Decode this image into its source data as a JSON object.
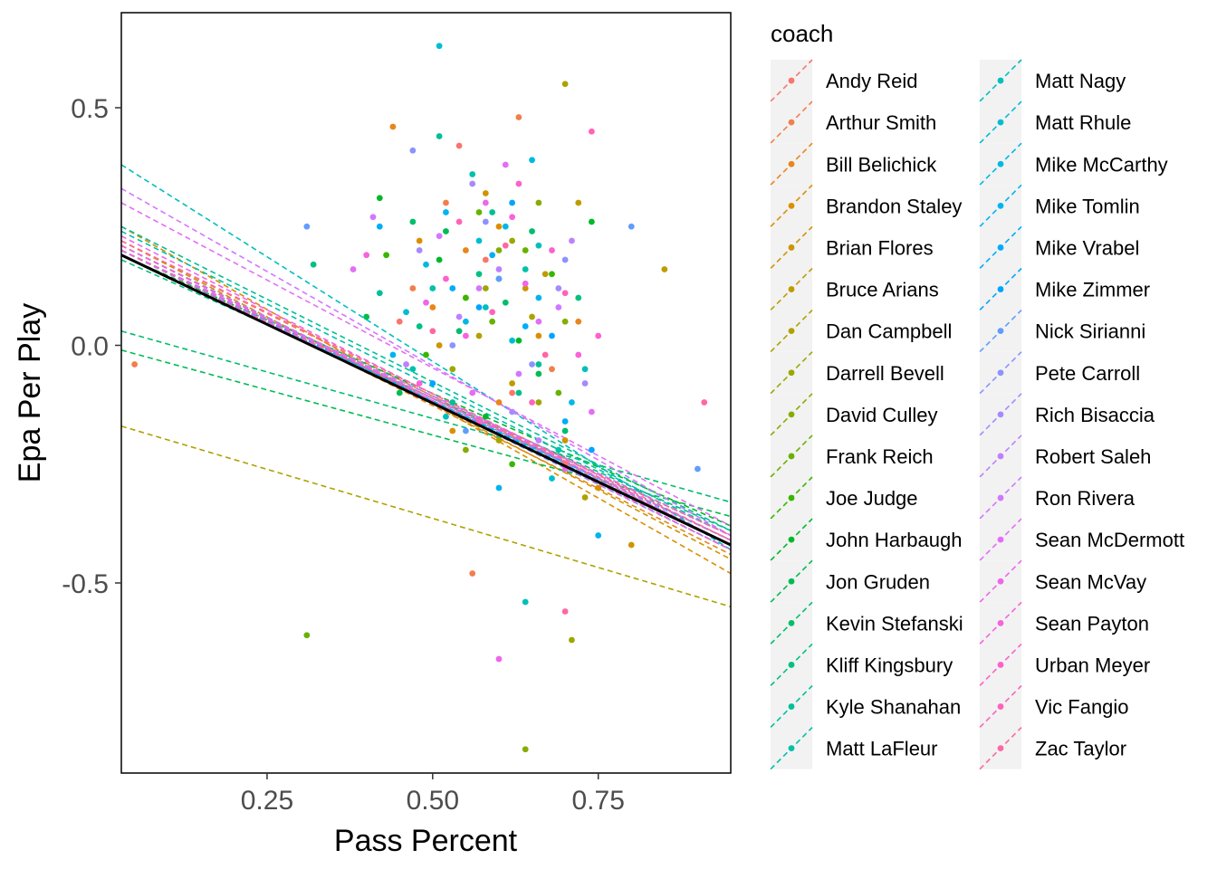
{
  "chart_data": {
    "type": "scatter",
    "xlabel": "Pass Percent",
    "ylabel": "Epa Per Play",
    "xlim": [
      0.03,
      0.95
    ],
    "ylim": [
      -0.9,
      0.7
    ],
    "x_ticks": [
      {
        "value": 0.25,
        "label": "0.25"
      },
      {
        "value": 0.5,
        "label": "0.50"
      },
      {
        "value": 0.75,
        "label": "0.75"
      }
    ],
    "y_ticks": [
      {
        "value": 0.5,
        "label": "0.5"
      },
      {
        "value": 0.0,
        "label": "0.0"
      },
      {
        "value": -0.5,
        "label": "-0.5"
      }
    ],
    "grid": false,
    "legend": {
      "title": "coach",
      "position": "right",
      "columns": 2
    },
    "overall_fit": {
      "x": [
        0.03,
        0.95
      ],
      "y": [
        0.19,
        -0.42
      ],
      "color": "#000000"
    },
    "series": [
      {
        "name": "Andy Reid",
        "color": "#F8766D",
        "fit": [
          0.2,
          -0.41
        ],
        "points": [
          [
            0.54,
            0.42
          ],
          [
            0.62,
            -0.1
          ],
          [
            0.45,
            0.05
          ],
          [
            0.7,
            -0.25
          ],
          [
            0.58,
            0.18
          ]
        ]
      },
      {
        "name": "Arthur Smith",
        "color": "#F17F4C",
        "fit": [
          0.22,
          -0.42
        ],
        "points": [
          [
            0.05,
            -0.04
          ],
          [
            0.63,
            0.48
          ],
          [
            0.52,
            0.3
          ],
          [
            0.68,
            -0.05
          ],
          [
            0.47,
            0.12
          ],
          [
            0.56,
            -0.48
          ]
        ]
      },
      {
        "name": "Bill Belichick",
        "color": "#E7861B",
        "fit": [
          0.2,
          -0.44
        ],
        "points": [
          [
            0.44,
            0.46
          ],
          [
            0.55,
            0.2
          ],
          [
            0.6,
            -0.12
          ],
          [
            0.72,
            0.05
          ],
          [
            0.5,
            0.08
          ]
        ]
      },
      {
        "name": "Brandon Staley",
        "color": "#DB8E00",
        "fit": [
          0.25,
          -0.48
        ],
        "points": [
          [
            0.6,
            0.25
          ],
          [
            0.66,
            0.02
          ],
          [
            0.53,
            -0.18
          ],
          [
            0.75,
            -0.3
          ],
          [
            0.48,
            0.22
          ]
        ]
      },
      {
        "name": "Brian Flores",
        "color": "#CE9500",
        "fit": [
          0.22,
          -0.45
        ],
        "points": [
          [
            0.58,
            0.32
          ],
          [
            0.64,
            0.12
          ],
          [
            0.7,
            -0.2
          ],
          [
            0.51,
            0.0
          ],
          [
            0.8,
            -0.42
          ]
        ]
      },
      {
        "name": "Bruce Arians",
        "color": "#BE9C00",
        "fit": [
          0.2,
          -0.41
        ],
        "points": [
          [
            0.72,
            0.3
          ],
          [
            0.67,
            0.15
          ],
          [
            0.62,
            -0.08
          ],
          [
            0.85,
            0.16
          ],
          [
            0.55,
            0.1
          ]
        ]
      },
      {
        "name": "Dan Campbell",
        "color": "#AEA200",
        "fit": [
          -0.17,
          -0.55
        ],
        "points": [
          [
            0.7,
            0.55
          ],
          [
            0.65,
            0.06
          ],
          [
            0.6,
            -0.2
          ],
          [
            0.73,
            -0.32
          ],
          [
            0.57,
            0.02
          ]
        ]
      },
      {
        "name": "Darrell Bevell",
        "color": "#9AA800",
        "fit": [
          0.2,
          -0.4
        ],
        "points": [
          [
            0.58,
            0.12
          ],
          [
            0.66,
            -0.12
          ],
          [
            0.71,
            -0.62
          ],
          [
            0.62,
            0.22
          ],
          [
            0.53,
            -0.05
          ]
        ]
      },
      {
        "name": "David Culley",
        "color": "#84AD00",
        "fit": [
          0.21,
          -0.42
        ],
        "points": [
          [
            0.64,
            -0.85
          ],
          [
            0.6,
            0.2
          ],
          [
            0.7,
            0.05
          ],
          [
            0.55,
            -0.22
          ],
          [
            0.66,
            0.3
          ]
        ]
      },
      {
        "name": "Frank Reich",
        "color": "#66B200",
        "fit": [
          0.19,
          -0.4
        ],
        "points": [
          [
            0.31,
            -0.61
          ],
          [
            0.59,
            0.05
          ],
          [
            0.64,
            0.2
          ],
          [
            0.69,
            -0.1
          ],
          [
            0.57,
            0.28
          ]
        ]
      },
      {
        "name": "Joe Judge",
        "color": "#39B600",
        "fit": [
          0.2,
          -0.41
        ],
        "points": [
          [
            0.43,
            0.19
          ],
          [
            0.55,
            0.1
          ],
          [
            0.62,
            -0.25
          ],
          [
            0.68,
            0.15
          ],
          [
            0.49,
            -0.02
          ]
        ]
      },
      {
        "name": "John Harbaugh",
        "color": "#00B92A",
        "fit": [
          0.19,
          -0.38
        ],
        "points": [
          [
            0.42,
            0.31
          ],
          [
            0.63,
            0.01
          ],
          [
            0.58,
            -0.15
          ],
          [
            0.74,
            0.26
          ],
          [
            0.51,
            0.18
          ]
        ]
      },
      {
        "name": "Jon Gruden",
        "color": "#00BC51",
        "fit": [
          -0.01,
          -0.36
        ],
        "points": [
          [
            0.4,
            0.06
          ],
          [
            0.52,
            0.24
          ],
          [
            0.66,
            -0.06
          ],
          [
            0.6,
            0.14
          ],
          [
            0.45,
            -0.1
          ]
        ]
      },
      {
        "name": "Kevin Stefanski",
        "color": "#00BE6C",
        "fit": [
          0.03,
          -0.33
        ],
        "points": [
          [
            0.47,
            0.26
          ],
          [
            0.61,
            0.09
          ],
          [
            0.7,
            -0.18
          ],
          [
            0.54,
            0.03
          ],
          [
            0.65,
            0.24
          ]
        ]
      },
      {
        "name": "Kliff Kingsbury",
        "color": "#00C083",
        "fit": [
          0.18,
          -0.39
        ],
        "points": [
          [
            0.32,
            0.17
          ],
          [
            0.57,
            0.15
          ],
          [
            0.63,
            -0.1
          ],
          [
            0.48,
            0.04
          ],
          [
            0.72,
            0.1
          ]
        ]
      },
      {
        "name": "Kyle Shanahan",
        "color": "#00C097",
        "fit": [
          0.25,
          -0.39
        ],
        "points": [
          [
            0.51,
            0.44
          ],
          [
            0.59,
            0.28
          ],
          [
            0.66,
            -0.04
          ],
          [
            0.42,
            0.11
          ],
          [
            0.53,
            -0.12
          ]
        ]
      },
      {
        "name": "Matt LaFleur",
        "color": "#00C1AA",
        "fit": [
          0.24,
          -0.4
        ],
        "points": [
          [
            0.5,
            0.12
          ],
          [
            0.56,
            0.36
          ],
          [
            0.64,
            0.16
          ],
          [
            0.69,
            -0.22
          ],
          [
            0.47,
            -0.05
          ]
        ]
      },
      {
        "name": "Matt Nagy",
        "color": "#00BFBC",
        "fit": [
          0.38,
          -0.43
        ],
        "points": [
          [
            0.64,
            -0.54
          ],
          [
            0.58,
            0.08
          ],
          [
            0.66,
            0.21
          ],
          [
            0.52,
            -0.15
          ],
          [
            0.73,
            -0.05
          ]
        ]
      },
      {
        "name": "Matt Rhule",
        "color": "#00BDD0",
        "fit": [
          0.2,
          -0.42
        ],
        "points": [
          [
            0.51,
            0.63
          ],
          [
            0.57,
            0.22
          ],
          [
            0.62,
            0.01
          ],
          [
            0.68,
            -0.28
          ],
          [
            0.46,
            0.07
          ]
        ]
      },
      {
        "name": "Mike McCarthy",
        "color": "#00B9E3",
        "fit": [
          0.21,
          -0.43
        ],
        "points": [
          [
            0.65,
            0.39
          ],
          [
            0.55,
            0.05
          ],
          [
            0.61,
            0.25
          ],
          [
            0.71,
            -0.12
          ],
          [
            0.49,
            0.17
          ]
        ]
      },
      {
        "name": "Mike Tomlin",
        "color": "#00B4F0",
        "fit": [
          0.19,
          -0.41
        ],
        "points": [
          [
            0.6,
            -0.3
          ],
          [
            0.66,
            0.1
          ],
          [
            0.52,
            0.28
          ],
          [
            0.75,
            -0.4
          ],
          [
            0.44,
            -0.02
          ]
        ]
      },
      {
        "name": "Mike Vrabel",
        "color": "#00ADFA",
        "fit": [
          0.2,
          -0.42
        ],
        "points": [
          [
            0.42,
            0.25
          ],
          [
            0.59,
            0.19
          ],
          [
            0.64,
            0.04
          ],
          [
            0.7,
            -0.16
          ],
          [
            0.53,
            0.12
          ]
        ]
      },
      {
        "name": "Mike Zimmer",
        "color": "#00A5FF",
        "fit": [
          0.21,
          -0.43
        ],
        "points": [
          [
            0.57,
            0.08
          ],
          [
            0.62,
            0.3
          ],
          [
            0.68,
            0.02
          ],
          [
            0.5,
            -0.08
          ],
          [
            0.74,
            -0.22
          ]
        ]
      },
      {
        "name": "Nick Sirianni",
        "color": "#619CFF",
        "fit": [
          0.19,
          -0.42
        ],
        "points": [
          [
            0.31,
            0.25
          ],
          [
            0.8,
            0.25
          ],
          [
            0.9,
            -0.26
          ],
          [
            0.6,
            0.14
          ],
          [
            0.55,
            -0.18
          ]
        ]
      },
      {
        "name": "Pete Carroll",
        "color": "#8B93FF",
        "fit": [
          0.2,
          -0.43
        ],
        "points": [
          [
            0.47,
            0.41
          ],
          [
            0.58,
            0.26
          ],
          [
            0.65,
            -0.04
          ],
          [
            0.53,
            0.0
          ],
          [
            0.7,
            0.18
          ]
        ]
      },
      {
        "name": "Rich Bisaccia",
        "color": "#A58AFF",
        "fit": [
          0.21,
          -0.42
        ],
        "points": [
          [
            0.56,
            0.34
          ],
          [
            0.62,
            -0.14
          ],
          [
            0.69,
            0.12
          ],
          [
            0.48,
            0.2
          ],
          [
            0.73,
            -0.08
          ]
        ]
      },
      {
        "name": "Robert Saleh",
        "color": "#BF80FF",
        "fit": [
          0.2,
          -0.4
        ],
        "points": [
          [
            0.6,
            0.16
          ],
          [
            0.66,
            -0.2
          ],
          [
            0.54,
            0.06
          ],
          [
            0.71,
            0.22
          ],
          [
            0.46,
            -0.04
          ]
        ]
      },
      {
        "name": "Ron Rivera",
        "color": "#D277FF",
        "fit": [
          0.33,
          -0.4
        ],
        "points": [
          [
            0.41,
            0.27
          ],
          [
            0.57,
            0.12
          ],
          [
            0.63,
            -0.06
          ],
          [
            0.69,
            0.08
          ],
          [
            0.51,
            0.23
          ]
        ]
      },
      {
        "name": "Sean McDermott",
        "color": "#E36EF6",
        "fit": [
          0.3,
          -0.38
        ],
        "points": [
          [
            0.38,
            0.16
          ],
          [
            0.61,
            0.38
          ],
          [
            0.66,
            0.05
          ],
          [
            0.56,
            -0.1
          ],
          [
            0.74,
            -0.14
          ]
        ]
      },
      {
        "name": "Sean McVay",
        "color": "#EE66EA",
        "fit": [
          0.23,
          -0.42
        ],
        "points": [
          [
            0.6,
            -0.66
          ],
          [
            0.58,
            0.3
          ],
          [
            0.64,
            0.13
          ],
          [
            0.7,
            -0.26
          ],
          [
            0.49,
            0.09
          ]
        ]
      },
      {
        "name": "Sean Payton",
        "color": "#F862DB",
        "fit": [
          0.2,
          -0.41
        ],
        "points": [
          [
            0.4,
            0.19
          ],
          [
            0.55,
            0.02
          ],
          [
            0.62,
            0.27
          ],
          [
            0.72,
            -0.02
          ],
          [
            0.48,
            -0.08
          ]
        ]
      },
      {
        "name": "Urban Meyer",
        "color": "#FD61CD",
        "fit": [
          0.21,
          -0.43
        ],
        "points": [
          [
            0.63,
            0.34
          ],
          [
            0.57,
            -0.16
          ],
          [
            0.68,
            0.2
          ],
          [
            0.52,
            0.14
          ],
          [
            0.75,
            0.02
          ]
        ]
      },
      {
        "name": "Vic Fangio",
        "color": "#FF63BA",
        "fit": [
          0.19,
          -0.4
        ],
        "points": [
          [
            0.74,
            0.45
          ],
          [
            0.59,
            0.07
          ],
          [
            0.65,
            -0.12
          ],
          [
            0.54,
            0.26
          ],
          [
            0.7,
            0.11
          ]
        ]
      },
      {
        "name": "Zac Taylor",
        "color": "#FF67A4",
        "fit": [
          0.22,
          -0.41
        ],
        "points": [
          [
            0.7,
            -0.56
          ],
          [
            0.61,
            0.21
          ],
          [
            0.67,
            -0.02
          ],
          [
            0.5,
            0.03
          ],
          [
            0.91,
            -0.12
          ]
        ]
      }
    ]
  }
}
